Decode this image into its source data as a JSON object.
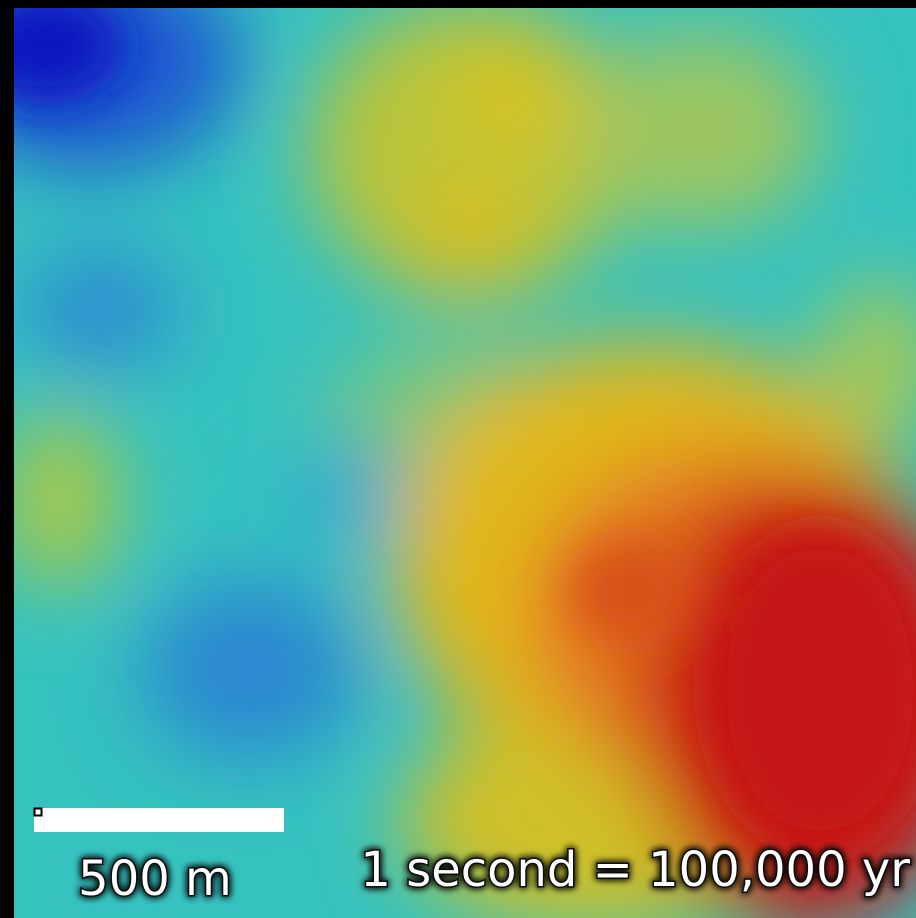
{
  "scale_bar": {
    "label": "500 m"
  },
  "time_scale": {
    "label": "1 second = 100,000 yr"
  }
}
